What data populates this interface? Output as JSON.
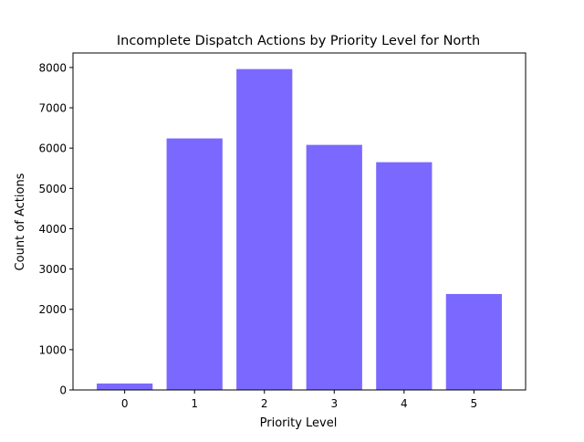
{
  "chart_data": {
    "type": "bar",
    "title": "Incomplete Dispatch Actions by Priority Level for North",
    "xlabel": "Priority Level",
    "ylabel": "Count of Actions",
    "categories": [
      "0",
      "1",
      "2",
      "3",
      "4",
      "5"
    ],
    "values": [
      160,
      6240,
      7960,
      6080,
      5650,
      2380
    ],
    "ylim": [
      0,
      8360
    ],
    "yticks": [
      0,
      1000,
      2000,
      3000,
      4000,
      5000,
      6000,
      7000,
      8000
    ],
    "bar_color": "#7b68ff",
    "grid": false
  }
}
